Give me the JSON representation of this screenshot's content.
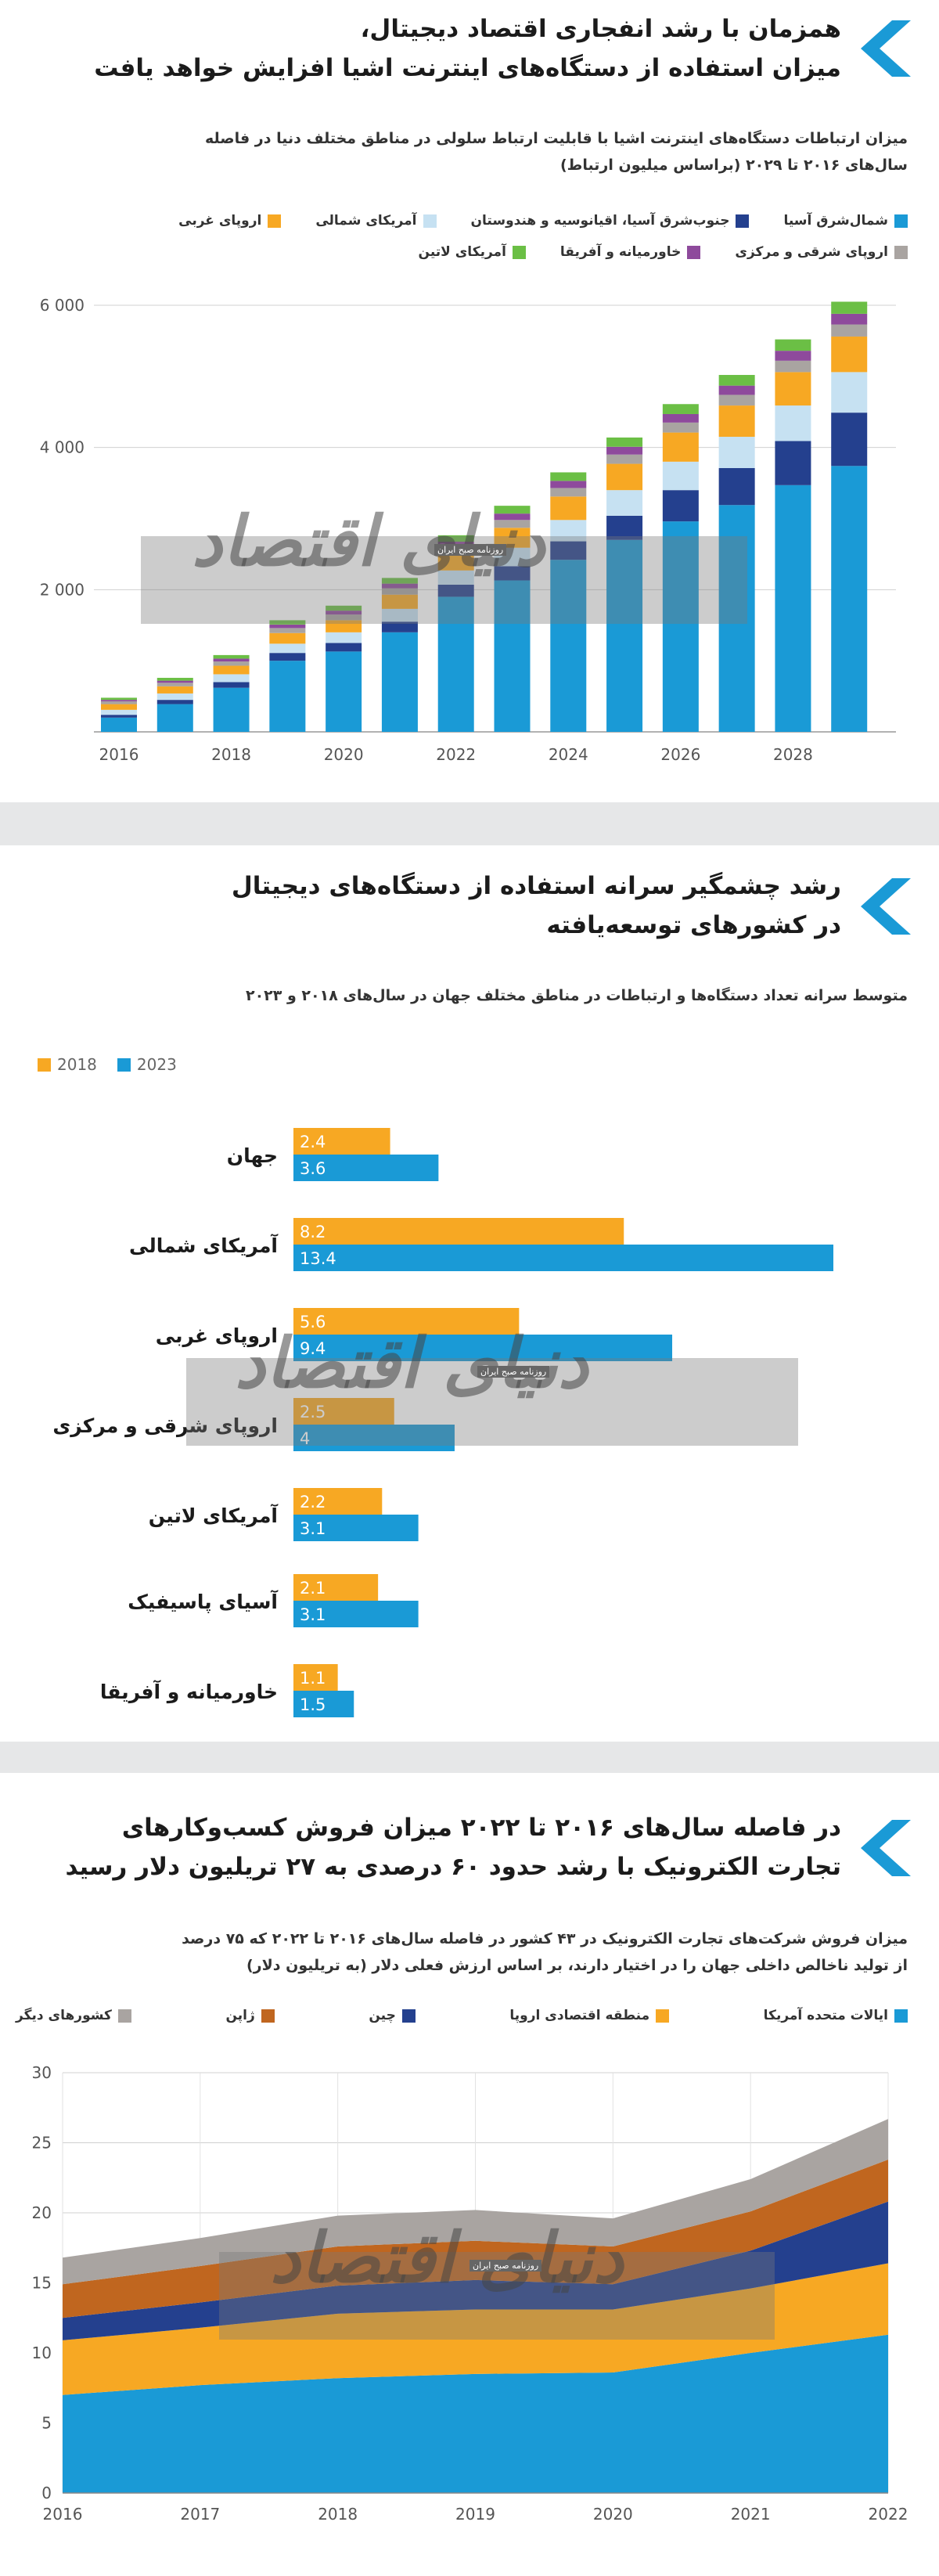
{
  "panel1": {
    "title_lines": [
      "همزمان با رشد انفجاری اقتصاد دیجیتال،",
      "میزان استفاده از دستگاه‌های اینترنت اشیا افزایش خواهد یافت"
    ],
    "subtitle_lines": [
      "میزان ارتباطات دستگاه‌های اینترنت اشیا با قابلیت ارتباط سلولی در مناطق مختلف دنیا در فاصله",
      "سال‌های ۲۰۱۶ تا ۲۰۲۹ (براساس میلیون ارتباط)"
    ],
    "legend": [
      {
        "label": "شمال‌شرق آسیا",
        "color": "#1a9ad6"
      },
      {
        "label": "جنوب‌شرق آسیا، اقیانوسیه و هندوستان",
        "color": "#24408e"
      },
      {
        "label": "آمریکای شمالی",
        "color": "#c6e1f2"
      },
      {
        "label": "اروپای غربی",
        "color": "#f7a823"
      },
      {
        "label": "اروپای شرقی و مرکزی",
        "color": "#a9a4a1"
      },
      {
        "label": "خاورمیانه و آفریقا",
        "color": "#8e4a9c"
      },
      {
        "label": "آمریکای لاتین",
        "color": "#6bbf45"
      }
    ],
    "watermark": "دنیای اقتصاد",
    "watermark_small": "روزنامه صبح ایران"
  },
  "panel2": {
    "title_lines": [
      "رشد چشمگیر سرانه استفاده از دستگاه‌های دیجیتال",
      "در کشورهای توسعه‌یافته"
    ],
    "subtitle_lines": [
      "متوسط سرانه تعداد دستگاه‌ها و ارتباطات در مناطق مختلف جهان در سال‌های ۲۰۱۸ و ۲۰۲۳"
    ],
    "legend": [
      {
        "label": "2018",
        "color": "#f7a823"
      },
      {
        "label": "2023",
        "color": "#1a9ad6"
      }
    ],
    "watermark": "دنیای اقتصاد",
    "watermark_small": "روزنامه صبح ایران"
  },
  "panel3": {
    "title_lines": [
      "در فاصله سال‌های ۲۰۱۶ تا ۲۰۲۲ میزان فروش کسب‌وکارهای",
      "تجارت الکترونیک با رشد حدود ۶۰ درصدی به ۲۷ تریلیون دلار رسید"
    ],
    "subtitle_lines": [
      "میزان فروش شرکت‌های تجارت الکترونیک در ۴۳ کشور در فاصله سال‌های ۲۰۱۶ تا ۲۰۲۲ که ۷۵ درصد",
      "از تولید ناخالص داخلی جهان را در اختیار دارند، بر اساس ارزش فعلی دلار (به تریلیون دلار)"
    ],
    "legend": [
      {
        "label": "ایالات متحده آمریکا",
        "color": "#1a9ad6"
      },
      {
        "label": "منطقه اقتصادی اروپا",
        "color": "#f7a823"
      },
      {
        "label": "چین",
        "color": "#24408e"
      },
      {
        "label": "ژاپن",
        "color": "#c0661f"
      },
      {
        "label": "کشورهای دیگر",
        "color": "#a9a4a1"
      }
    ],
    "watermark": "دنیای اقتصاد",
    "watermark_small": "روزنامه صبح ایران"
  },
  "chart_data": [
    {
      "type": "bar",
      "stacked": true,
      "categories": [
        "2016",
        "2017",
        "2018",
        "2019",
        "2020",
        "2021",
        "2022",
        "2023",
        "2024",
        "2025",
        "2026",
        "2027",
        "2028",
        "2029"
      ],
      "x_tick_labels": [
        "2016",
        "2018",
        "2020",
        "2022",
        "2024",
        "2026",
        "2028"
      ],
      "ylim": [
        0,
        6000
      ],
      "y_ticks": [
        2000,
        4000,
        6000
      ],
      "y_tick_labels": [
        "2 000",
        "4 000",
        "6 000"
      ],
      "grid": true,
      "series": [
        {
          "name": "شمال‌شرق آسیا",
          "color": "#1a9ad6",
          "values": [
            200,
            390,
            620,
            1000,
            1130,
            1400,
            1900,
            2130,
            2420,
            2700,
            2960,
            3190,
            3470,
            3740
          ]
        },
        {
          "name": "جنوب‌شرق آسیا، اقیانوسیه و هندوستان",
          "color": "#24408e",
          "values": [
            40,
            60,
            80,
            110,
            120,
            150,
            170,
            200,
            260,
            340,
            440,
            520,
            620,
            750
          ]
        },
        {
          "name": "آمریکای شمالی",
          "color": "#c6e1f2",
          "values": [
            70,
            90,
            110,
            130,
            150,
            180,
            200,
            260,
            300,
            360,
            400,
            440,
            500,
            570
          ]
        },
        {
          "name": "اروپای غربی",
          "color": "#f7a823",
          "values": [
            80,
            100,
            120,
            150,
            170,
            200,
            230,
            280,
            330,
            370,
            410,
            440,
            470,
            500
          ]
        },
        {
          "name": "اروپای شرقی و مرکزی",
          "color": "#a9a4a1",
          "values": [
            40,
            50,
            60,
            70,
            80,
            90,
            100,
            110,
            120,
            130,
            140,
            150,
            160,
            170
          ]
        },
        {
          "name": "خاورمیانه و آفریقا",
          "color": "#8e4a9c",
          "values": [
            20,
            30,
            40,
            50,
            55,
            65,
            75,
            90,
            100,
            110,
            120,
            130,
            140,
            150
          ]
        },
        {
          "name": "آمریکای لاتین",
          "color": "#6bbf45",
          "values": [
            30,
            40,
            50,
            60,
            70,
            80,
            90,
            110,
            120,
            130,
            140,
            150,
            160,
            170
          ]
        }
      ]
    },
    {
      "type": "bar",
      "orientation": "horizontal",
      "categories": [
        "جهان",
        "آمریکای شمالی",
        "اروپای غربی",
        "اروپای شرقی و مرکزی",
        "آمریکای لاتین",
        "آسیای پاسیفیک",
        "خاورمیانه و آفریقا"
      ],
      "series": [
        {
          "name": "2018",
          "color": "#f7a823",
          "values": [
            2.4,
            8.2,
            5.6,
            2.5,
            2.2,
            2.1,
            1.1
          ]
        },
        {
          "name": "2023",
          "color": "#1a9ad6",
          "values": [
            3.6,
            13.4,
            9.4,
            4,
            3.1,
            3.1,
            1.5
          ]
        }
      ],
      "xlim": [
        0,
        13.4
      ]
    },
    {
      "type": "area",
      "stacked": true,
      "x": [
        "2016",
        "2017",
        "2018",
        "2019",
        "2020",
        "2021",
        "2022"
      ],
      "ylim": [
        0,
        30
      ],
      "y_ticks": [
        0,
        5,
        10,
        15,
        20,
        25,
        30
      ],
      "grid": true,
      "series": [
        {
          "name": "ایالات متحده آمریکا",
          "color": "#1a9ad6",
          "values": [
            7.0,
            7.7,
            8.2,
            8.5,
            8.6,
            10.0,
            11.3
          ]
        },
        {
          "name": "منطقه اقتصادی اروپا",
          "color": "#f7a823",
          "values": [
            3.9,
            4.1,
            4.6,
            4.6,
            4.5,
            4.6,
            5.1
          ]
        },
        {
          "name": "چین",
          "color": "#24408e",
          "values": [
            1.6,
            1.8,
            2.0,
            2.1,
            1.8,
            2.7,
            4.4
          ]
        },
        {
          "name": "ژاپن",
          "color": "#c0661f",
          "values": [
            2.4,
            2.6,
            2.8,
            2.8,
            2.7,
            2.8,
            3.0
          ]
        },
        {
          "name": "کشورهای دیگر",
          "color": "#a9a4a1",
          "values": [
            1.9,
            2.0,
            2.2,
            2.2,
            2.0,
            2.3,
            2.9
          ]
        }
      ]
    }
  ]
}
